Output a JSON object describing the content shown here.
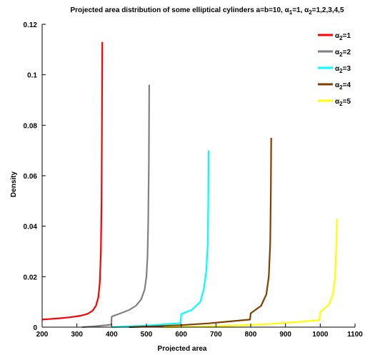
{
  "chart_data": {
    "type": "line",
    "title": {
      "prefix": "Projected area distribution of some elliptical cylinders a=b=10, α",
      "sub1": "1",
      "mid1": "=1, α",
      "sub2": "2",
      "suffix": "=1,2,3,4,5"
    },
    "xlabel": "Projected area",
    "ylabel": "Density",
    "xlim": [
      200,
      1100
    ],
    "ylim": [
      0,
      0.12
    ],
    "x_ticks": [
      "200",
      "300",
      "400",
      "500",
      "600",
      "700",
      "800",
      "900",
      "1000",
      "1100"
    ],
    "y_ticks": [
      "0",
      "0.02",
      "0.04",
      "0.06",
      "0.08",
      "0.1",
      "0.12"
    ],
    "legend_position": "top-right",
    "series": [
      {
        "name": "α2=1",
        "label_base": "α",
        "label_sub": "2",
        "label_rest": "=1",
        "color": "#ff0000",
        "x": [
          200,
          220,
          250,
          280,
          310,
          330,
          345,
          355,
          362,
          366,
          369,
          371,
          372,
          373
        ],
        "y": [
          0.003,
          0.0032,
          0.0035,
          0.0039,
          0.0045,
          0.0052,
          0.0065,
          0.0085,
          0.012,
          0.018,
          0.03,
          0.05,
          0.08,
          0.113
        ]
      },
      {
        "name": "α2=2",
        "label_base": "α",
        "label_sub": "2",
        "label_rest": "=2",
        "color": "#808080",
        "x": [
          315,
          350,
          380,
          399,
          400,
          402,
          420,
          450,
          470,
          485,
          495,
          500,
          503,
          505,
          507,
          508
        ],
        "y": [
          0,
          0.0003,
          0.0007,
          0.001,
          0.004,
          0.0043,
          0.0052,
          0.0068,
          0.0085,
          0.011,
          0.015,
          0.02,
          0.028,
          0.04,
          0.065,
          0.096
        ]
      },
      {
        "name": "α2=3",
        "label_base": "α",
        "label_sub": "2",
        "label_rest": "=3",
        "color": "#00ffff",
        "x": [
          400,
          450,
          500,
          550,
          598,
          600,
          602,
          630,
          655,
          665,
          672,
          676,
          678,
          679
        ],
        "y": [
          0,
          0.0003,
          0.0006,
          0.0011,
          0.0016,
          0.005,
          0.0053,
          0.0068,
          0.01,
          0.015,
          0.022,
          0.032,
          0.05,
          0.07
        ]
      },
      {
        "name": "α2=4",
        "label_base": "α",
        "label_sub": "2",
        "label_rest": "=4",
        "color": "#804000",
        "x": [
          450,
          520,
          600,
          680,
          750,
          798,
          800,
          803,
          830,
          845,
          852,
          856,
          858,
          859
        ],
        "y": [
          0,
          0.0003,
          0.0008,
          0.0015,
          0.0024,
          0.003,
          0.0055,
          0.0058,
          0.0085,
          0.013,
          0.02,
          0.033,
          0.055,
          0.075
        ]
      },
      {
        "name": "α2=5",
        "label_base": "α",
        "label_sub": "2",
        "label_rest": "=5",
        "color": "#ffff00",
        "x": [
          550,
          650,
          750,
          850,
          950,
          998,
          1000,
          1003,
          1025,
          1036,
          1042,
          1045,
          1047,
          1048
        ],
        "y": [
          0,
          0.0002,
          0.0006,
          0.0012,
          0.0022,
          0.0028,
          0.006,
          0.0063,
          0.009,
          0.013,
          0.019,
          0.027,
          0.036,
          0.043
        ]
      }
    ]
  }
}
